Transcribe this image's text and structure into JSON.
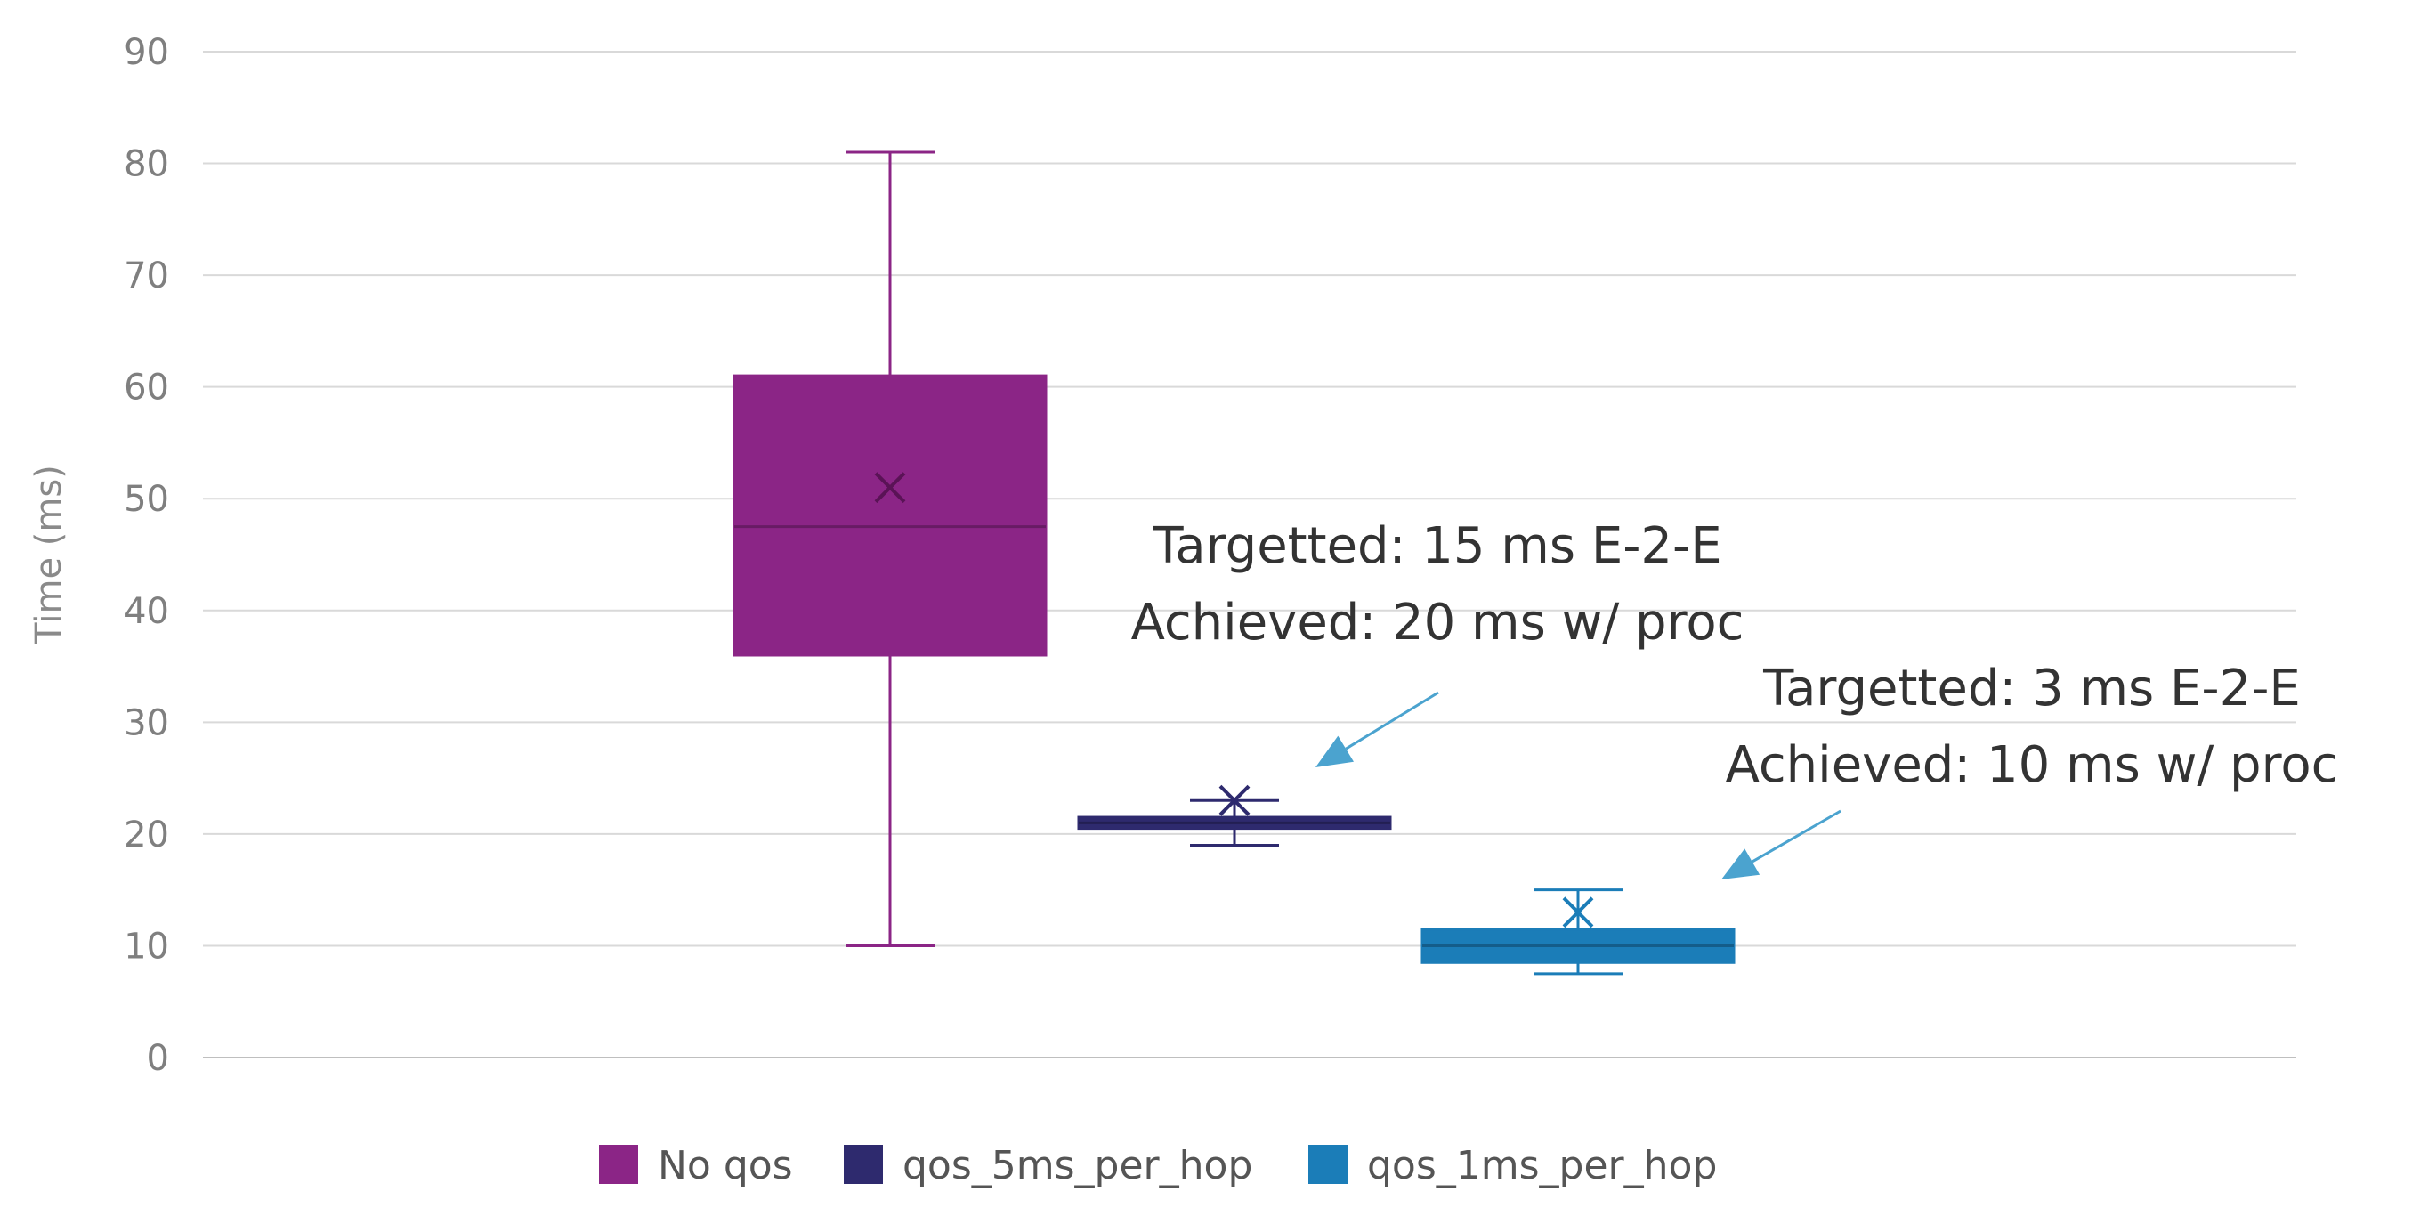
{
  "chart_data": {
    "type": "box",
    "ylabel": "Time (ms)",
    "ylim": [
      0,
      90
    ],
    "yticks": [
      0,
      10,
      20,
      30,
      40,
      50,
      60,
      70,
      80,
      90
    ],
    "grid": true,
    "legend_position": "bottom",
    "series": [
      {
        "name": "No qos",
        "color": "#8B2586",
        "min": 10,
        "q1": 36,
        "median": 47.5,
        "q3": 61,
        "max": 81,
        "mean": 51
      },
      {
        "name": "qos_5ms_per_hop",
        "color": "#2E2A6E",
        "min": 19,
        "q1": 20.5,
        "median": 21,
        "q3": 21.5,
        "max": 23,
        "mean": 23
      },
      {
        "name": "qos_1ms_per_hop",
        "color": "#1B7DB8",
        "min": 7.5,
        "q1": 8.5,
        "median": 10,
        "q3": 11.5,
        "max": 15,
        "mean": 13
      }
    ],
    "annotations": [
      {
        "series": "qos_5ms_per_hop",
        "lines": [
          "Targetted: 15 ms E-2-E",
          "Achieved: 20 ms w/ proc"
        ],
        "color": "#4BA3CF"
      },
      {
        "series": "qos_1ms_per_hop",
        "lines": [
          "Targetted: 3 ms E-2-E",
          "Achieved: 10 ms w/ proc"
        ],
        "color": "#4BA3CF"
      }
    ]
  }
}
